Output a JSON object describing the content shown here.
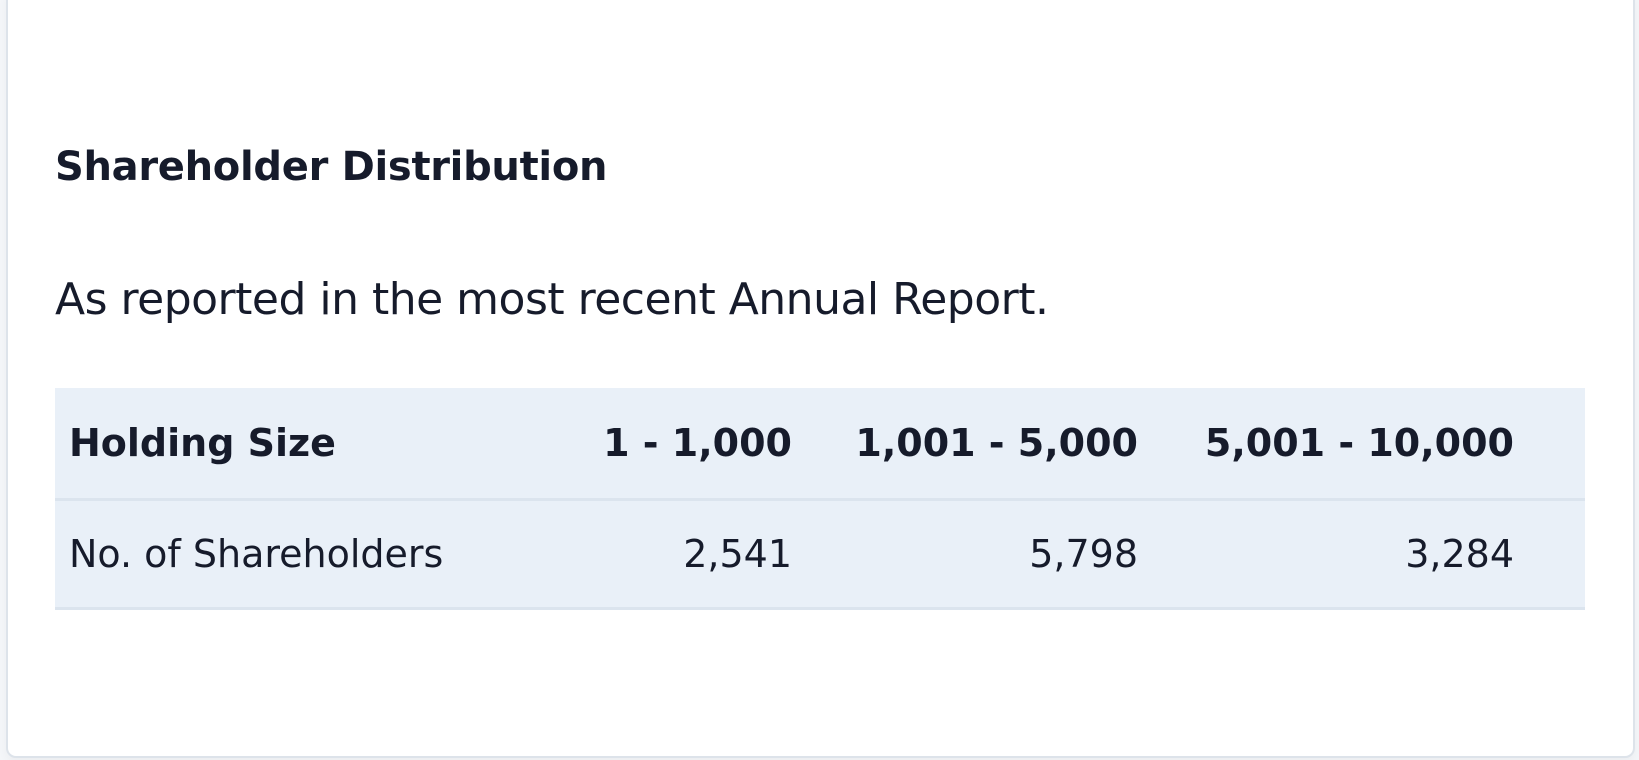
{
  "header": {
    "title": "Shareholder Distribution",
    "subtitle": "As reported in the most recent Annual Report."
  },
  "table": {
    "columns": [
      "Holding Size",
      "1 - 1,000",
      "1,001 - 5,000",
      "5,001 - 10,000"
    ],
    "rows": [
      [
        "No. of Shareholders",
        "2,541",
        "5,798",
        "3,284"
      ]
    ]
  }
}
